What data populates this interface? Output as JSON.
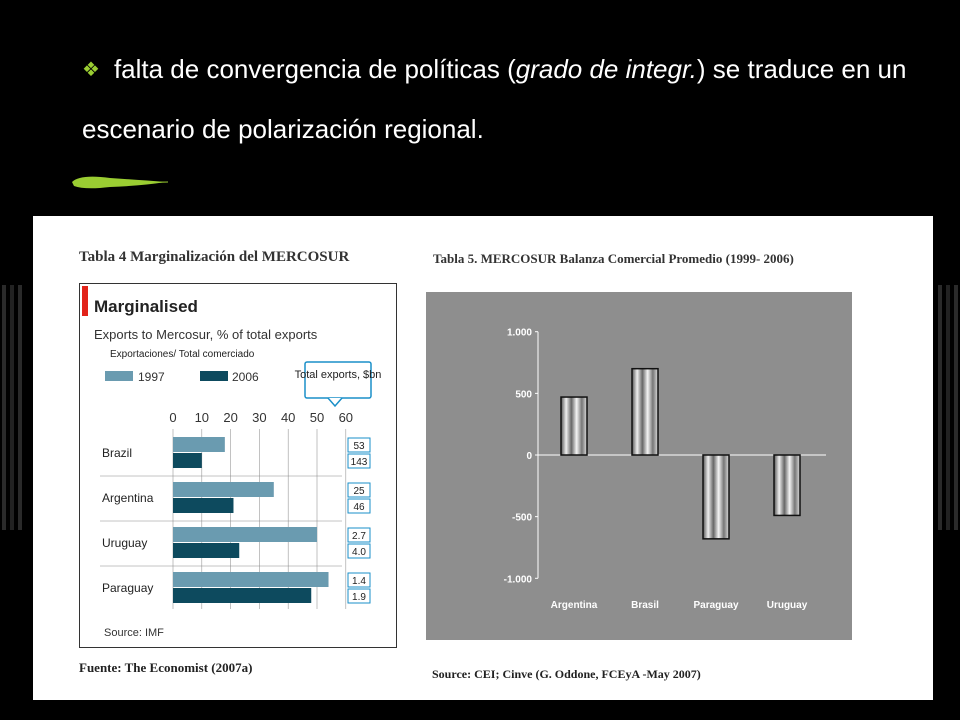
{
  "slide": {
    "bullet_icon": "diamond-bullet-icon",
    "text_part1": "falta de convergencia de políticas (",
    "text_italic": "grado de integr.",
    "text_part2": ") se traduce en un escenario de polarización regional.",
    "accent_color": "#9acd32"
  },
  "table4": {
    "heading": "Tabla 4   Marginalización del MERCOSUR",
    "chart_title": "Marginalised",
    "subtitle": "Exports to Mercosur, % of total exports",
    "subtitle_es": "Exportaciones/ Total comerciado",
    "legend_1997": "1997",
    "legend_2006": "2006",
    "callout": "Total exports, $bn",
    "source": "Source: IMF",
    "footer": "Fuente: The Economist (2007a)"
  },
  "table5": {
    "heading": "Tabla 5. MERCOSUR Balanza Comercial Promedio (1999- 2006)",
    "footer": "Source: CEI; Cinve (G. Oddone, FCEyA -May 2007)"
  },
  "chart_data": [
    {
      "type": "bar",
      "orientation": "horizontal",
      "title": "Marginalised",
      "subtitle": "Exports to Mercosur, % of total exports",
      "categories": [
        "Brazil",
        "Argentina",
        "Uruguay",
        "Paraguay"
      ],
      "series": [
        {
          "name": "1997",
          "values": [
            18,
            35,
            50,
            54
          ],
          "color": "#6a9bb0"
        },
        {
          "name": "2006",
          "values": [
            10,
            21,
            23,
            48
          ],
          "color": "#0d4a5e"
        }
      ],
      "xticks": [
        "0",
        "10",
        "20",
        "30",
        "40",
        "50",
        "60"
      ],
      "xlim": [
        0,
        60
      ],
      "annotations_total_exports_bn": [
        [
          "53",
          "143"
        ],
        [
          "25",
          "46"
        ],
        [
          "2.7",
          "4.0"
        ],
        [
          "1.4",
          "1.9"
        ]
      ],
      "legend_position": "top"
    },
    {
      "type": "bar",
      "orientation": "vertical",
      "title": "Tabla 5. MERCOSUR Balanza Comercial Promedio (1999- 2006)",
      "categories": [
        "Argentina",
        "Brasil",
        "Paraguay",
        "Uruguay"
      ],
      "values": [
        470,
        700,
        -680,
        -490
      ],
      "yticks": [
        "1.000",
        "500",
        "0",
        "-500",
        "-1.000"
      ],
      "ylim": [
        -1000,
        1000
      ],
      "grid": false,
      "background": "#8e8e8e"
    }
  ]
}
